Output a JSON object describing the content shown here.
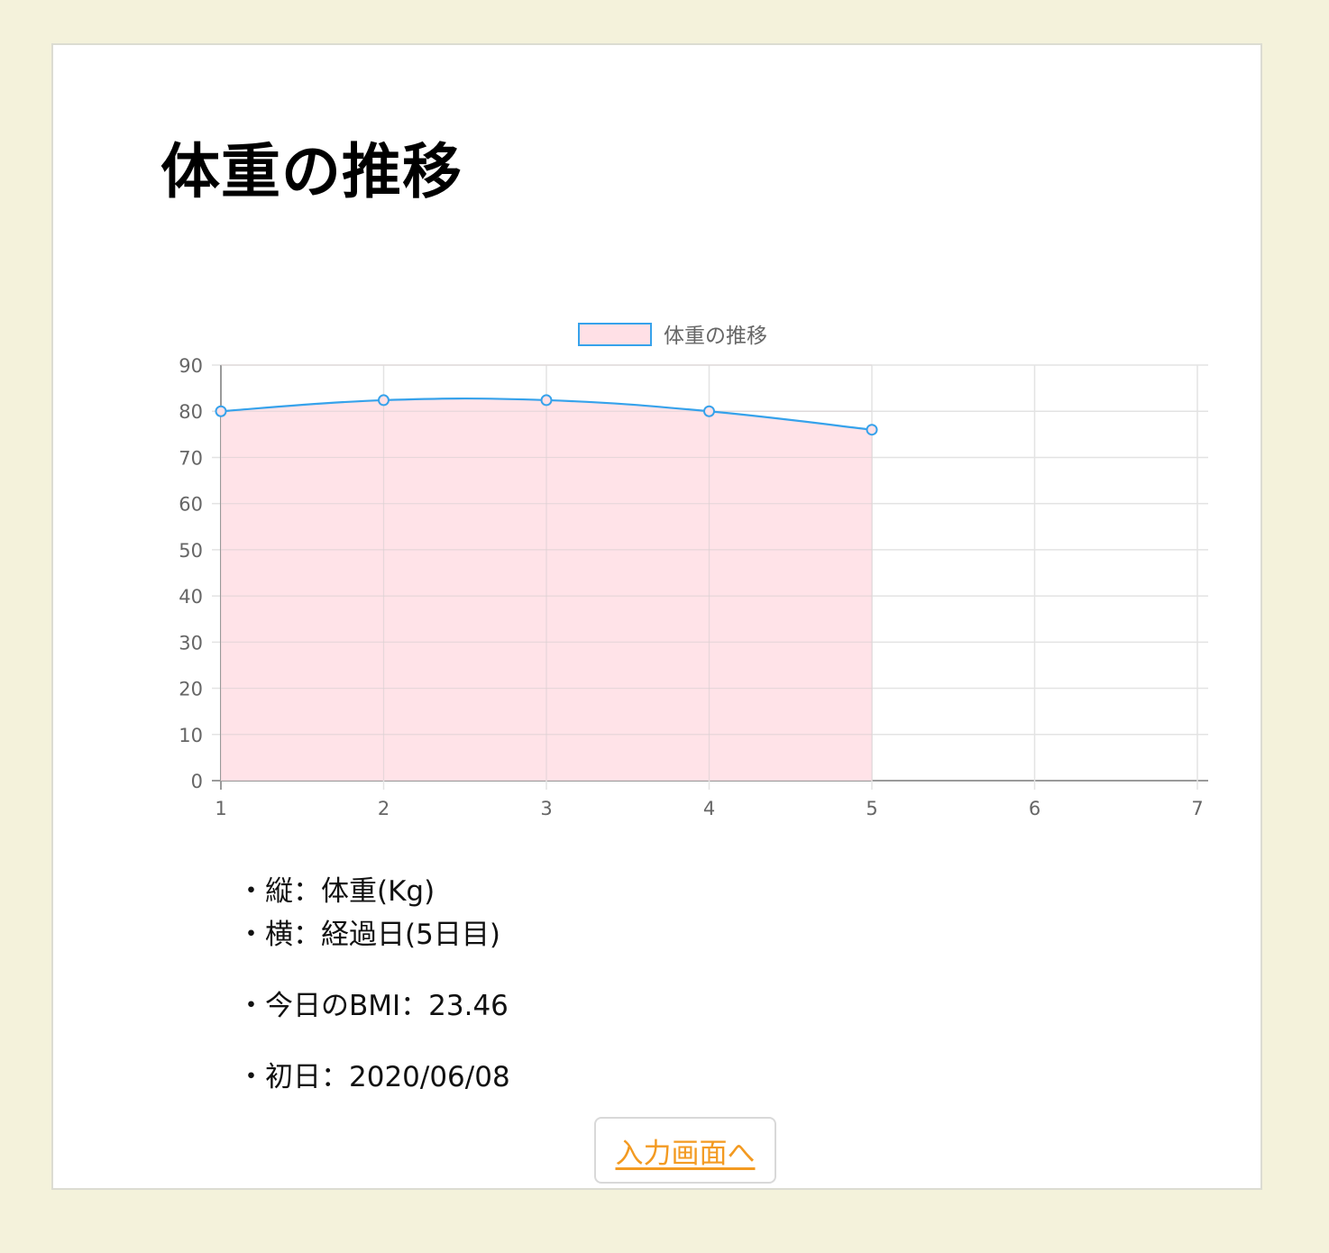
{
  "page": {
    "title": "体重の推移",
    "background_color": "#f4f2db",
    "card_color": "#ffffff"
  },
  "chart_data": {
    "type": "line",
    "x": [
      1,
      2,
      3,
      4,
      5
    ],
    "x_ticks": [
      "1",
      "2",
      "3",
      "4",
      "5",
      "6",
      "7"
    ],
    "xlim": [
      1,
      7
    ],
    "ylim": [
      0,
      90
    ],
    "y_ticks": [
      0,
      10,
      20,
      30,
      40,
      50,
      60,
      70,
      80,
      90
    ],
    "grid": true,
    "legend_position": "top-center",
    "series": [
      {
        "name": "体重の推移",
        "values": [
          80,
          82.4,
          82.4,
          80,
          76
        ],
        "line_color": "#36a2eb",
        "fill_color": "#ffe0e6",
        "fill": true,
        "smooth": true
      }
    ]
  },
  "notes": {
    "vertical": "・縦：体重(Kg)",
    "horizontal": "・横：経過日(5日目)",
    "bmi": "・今日のBMI：23.46",
    "first_day": "・初日：2020/06/08"
  },
  "actions": {
    "back_link": "入力画面へ",
    "link_color": "#f39a21"
  }
}
